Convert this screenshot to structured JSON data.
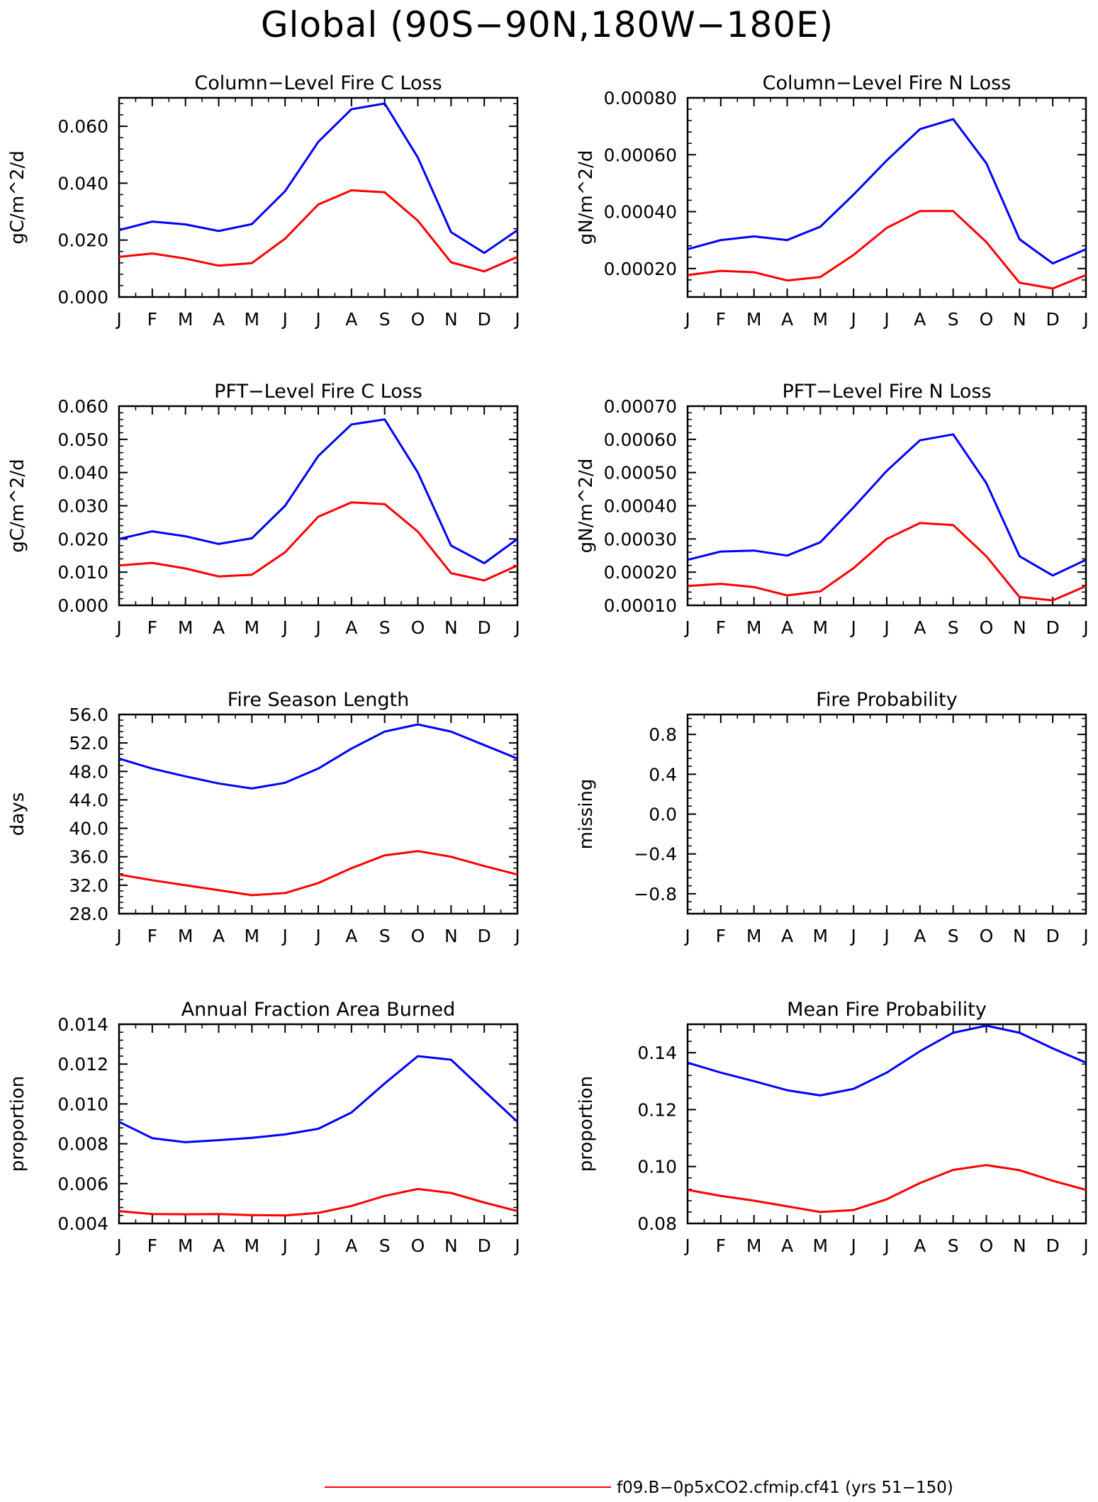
{
  "figure": {
    "title": "Global (90S−90N,180W−180E)",
    "legend": [
      {
        "label": "f09.B−0p5xCO2.cfmip.cf41 (yrs 51−150)",
        "color": "#ff0000"
      }
    ],
    "colors": {
      "series_1": "#0000ff",
      "series_2": "#ff0000"
    }
  },
  "chart_data": [
    {
      "type": "line",
      "title": "Column−Level Fire C Loss",
      "ylabel": "gC/m^2/d",
      "xlabel": "",
      "categories": [
        "J",
        "F",
        "M",
        "A",
        "M",
        "J",
        "J",
        "A",
        "S",
        "O",
        "N",
        "D",
        "J"
      ],
      "ylim": [
        0.0,
        0.07
      ],
      "yticks": [
        "0.000",
        "0.020",
        "0.040",
        "0.060"
      ],
      "ytick_values": [
        0,
        0.02,
        0.04,
        0.06
      ],
      "series": [
        {
          "color": "#0000ff",
          "values": [
            0.0235,
            0.0265,
            0.0255,
            0.0232,
            0.0256,
            0.0372,
            0.0545,
            0.066,
            0.068,
            0.049,
            0.0228,
            0.0155,
            0.0235
          ]
        },
        {
          "color": "#ff0000",
          "values": [
            0.0141,
            0.0153,
            0.0135,
            0.011,
            0.0119,
            0.0205,
            0.0325,
            0.0375,
            0.0368,
            0.0268,
            0.0122,
            0.009,
            0.0141
          ]
        }
      ]
    },
    {
      "type": "line",
      "title": "Column−Level Fire N Loss",
      "ylabel": "gN/m^2/d",
      "xlabel": "",
      "categories": [
        "J",
        "F",
        "M",
        "A",
        "M",
        "J",
        "J",
        "A",
        "S",
        "O",
        "N",
        "D",
        "J"
      ],
      "ylim": [
        0.0001,
        0.0008
      ],
      "yticks": [
        "0.00020",
        "0.00040",
        "0.00060",
        "0.00080"
      ],
      "ytick_values": [
        0.0002,
        0.0004,
        0.0006,
        0.0008
      ],
      "series": [
        {
          "color": "#0000ff",
          "values": [
            0.000268,
            0.0003,
            0.000313,
            0.0003,
            0.000347,
            0.00046,
            0.00058,
            0.00069,
            0.000725,
            0.00057,
            0.000303,
            0.000218,
            0.000268
          ]
        },
        {
          "color": "#ff0000",
          "values": [
            0.000177,
            0.000192,
            0.000187,
            0.000158,
            0.00017,
            0.000248,
            0.000343,
            0.000402,
            0.000402,
            0.000293,
            0.00015,
            0.00013,
            0.000177
          ]
        }
      ]
    },
    {
      "type": "line",
      "title": "PFT−Level Fire C Loss",
      "ylabel": "gC/m^2/d",
      "xlabel": "",
      "categories": [
        "J",
        "F",
        "M",
        "A",
        "M",
        "J",
        "J",
        "A",
        "S",
        "O",
        "N",
        "D",
        "J"
      ],
      "ylim": [
        0.0,
        0.06
      ],
      "yticks": [
        "0.000",
        "0.010",
        "0.020",
        "0.030",
        "0.040",
        "0.050",
        "0.060"
      ],
      "ytick_values": [
        0,
        0.01,
        0.02,
        0.03,
        0.04,
        0.05,
        0.06
      ],
      "series": [
        {
          "color": "#0000ff",
          "values": [
            0.02,
            0.0223,
            0.0208,
            0.0185,
            0.0202,
            0.03,
            0.045,
            0.0545,
            0.056,
            0.04,
            0.018,
            0.0127,
            0.02
          ]
        },
        {
          "color": "#ff0000",
          "values": [
            0.012,
            0.0128,
            0.0111,
            0.0087,
            0.0092,
            0.016,
            0.0267,
            0.031,
            0.0305,
            0.0222,
            0.0097,
            0.0075,
            0.012
          ]
        }
      ]
    },
    {
      "type": "line",
      "title": "PFT−Level Fire N Loss",
      "ylabel": "gN/m^2/d",
      "xlabel": "",
      "categories": [
        "J",
        "F",
        "M",
        "A",
        "M",
        "J",
        "J",
        "A",
        "S",
        "O",
        "N",
        "D",
        "J"
      ],
      "ylim": [
        0.0001,
        0.0007
      ],
      "yticks": [
        "0.00010",
        "0.00020",
        "0.00030",
        "0.00040",
        "0.00050",
        "0.00060",
        "0.00070"
      ],
      "ytick_values": [
        0.0001,
        0.0002,
        0.0003,
        0.0004,
        0.0005,
        0.0006,
        0.0007
      ],
      "series": [
        {
          "color": "#0000ff",
          "values": [
            0.000237,
            0.000262,
            0.000265,
            0.00025,
            0.00029,
            0.000395,
            0.000505,
            0.000597,
            0.000615,
            0.000468,
            0.000248,
            0.00019,
            0.000237
          ]
        },
        {
          "color": "#ff0000",
          "values": [
            0.000158,
            0.000165,
            0.000155,
            0.00013,
            0.000142,
            0.000212,
            0.0003,
            0.000348,
            0.000342,
            0.000248,
            0.000125,
            0.000115,
            0.000158
          ]
        }
      ]
    },
    {
      "type": "line",
      "title": "Fire Season Length",
      "ylabel": "days",
      "xlabel": "",
      "categories": [
        "J",
        "F",
        "M",
        "A",
        "M",
        "J",
        "J",
        "A",
        "S",
        "O",
        "N",
        "D",
        "J"
      ],
      "ylim": [
        28.0,
        56.0
      ],
      "yticks": [
        "28.0",
        "32.0",
        "36.0",
        "40.0",
        "44.0",
        "48.0",
        "52.0",
        "56.0"
      ],
      "ytick_values": [
        28,
        32,
        36,
        40,
        44,
        48,
        52,
        56
      ],
      "series": [
        {
          "color": "#0000ff",
          "values": [
            49.8,
            48.4,
            47.3,
            46.3,
            45.6,
            46.4,
            48.4,
            51.2,
            53.6,
            54.6,
            53.6,
            51.7,
            49.8
          ]
        },
        {
          "color": "#ff0000",
          "values": [
            33.5,
            32.7,
            32.0,
            31.3,
            30.6,
            30.9,
            32.3,
            34.4,
            36.2,
            36.8,
            36.0,
            34.7,
            33.5
          ]
        }
      ]
    },
    {
      "type": "line",
      "title": "Fire Probability",
      "ylabel": "missing",
      "xlabel": "",
      "categories": [
        "J",
        "F",
        "M",
        "A",
        "M",
        "J",
        "J",
        "A",
        "S",
        "O",
        "N",
        "D",
        "J"
      ],
      "ylim": [
        -1.0,
        1.0
      ],
      "yticks": [
        "−0.8",
        "−0.4",
        "0.0",
        "0.4",
        "0.8"
      ],
      "ytick_values": [
        -0.8,
        -0.4,
        0.0,
        0.4,
        0.8
      ],
      "series": []
    },
    {
      "type": "line",
      "title": "Annual Fraction Area Burned",
      "ylabel": "proportion",
      "xlabel": "",
      "categories": [
        "J",
        "F",
        "M",
        "A",
        "M",
        "J",
        "J",
        "A",
        "S",
        "O",
        "N",
        "D",
        "J"
      ],
      "ylim": [
        0.004,
        0.014
      ],
      "yticks": [
        "0.004",
        "0.006",
        "0.008",
        "0.010",
        "0.012",
        "0.014"
      ],
      "ytick_values": [
        0.004,
        0.006,
        0.008,
        0.01,
        0.012,
        0.014
      ],
      "series": [
        {
          "color": "#0000ff",
          "values": [
            0.0091,
            0.00828,
            0.00808,
            0.00818,
            0.0083,
            0.00847,
            0.00875,
            0.00957,
            0.01103,
            0.0124,
            0.01222,
            0.01065,
            0.0091
          ]
        },
        {
          "color": "#ff0000",
          "values": [
            0.00462,
            0.00447,
            0.00446,
            0.00447,
            0.00442,
            0.0044,
            0.00453,
            0.00488,
            0.00538,
            0.00573,
            0.00553,
            0.00505,
            0.00462
          ]
        }
      ]
    },
    {
      "type": "line",
      "title": "Mean Fire Probability",
      "ylabel": "proportion",
      "xlabel": "",
      "categories": [
        "J",
        "F",
        "M",
        "A",
        "M",
        "J",
        "J",
        "A",
        "S",
        "O",
        "N",
        "D",
        "J"
      ],
      "ylim": [
        0.08,
        0.15
      ],
      "yticks": [
        "0.08",
        "0.10",
        "0.12",
        "0.14"
      ],
      "ytick_values": [
        0.08,
        0.1,
        0.12,
        0.14
      ],
      "series": [
        {
          "color": "#0000ff",
          "values": [
            0.1365,
            0.133,
            0.13,
            0.1268,
            0.125,
            0.1273,
            0.133,
            0.1405,
            0.147,
            0.1495,
            0.147,
            0.1415,
            0.1365
          ]
        },
        {
          "color": "#ff0000",
          "values": [
            0.0918,
            0.0897,
            0.088,
            0.086,
            0.084,
            0.0847,
            0.0885,
            0.0942,
            0.0988,
            0.1005,
            0.0987,
            0.095,
            0.0918
          ]
        }
      ]
    }
  ]
}
